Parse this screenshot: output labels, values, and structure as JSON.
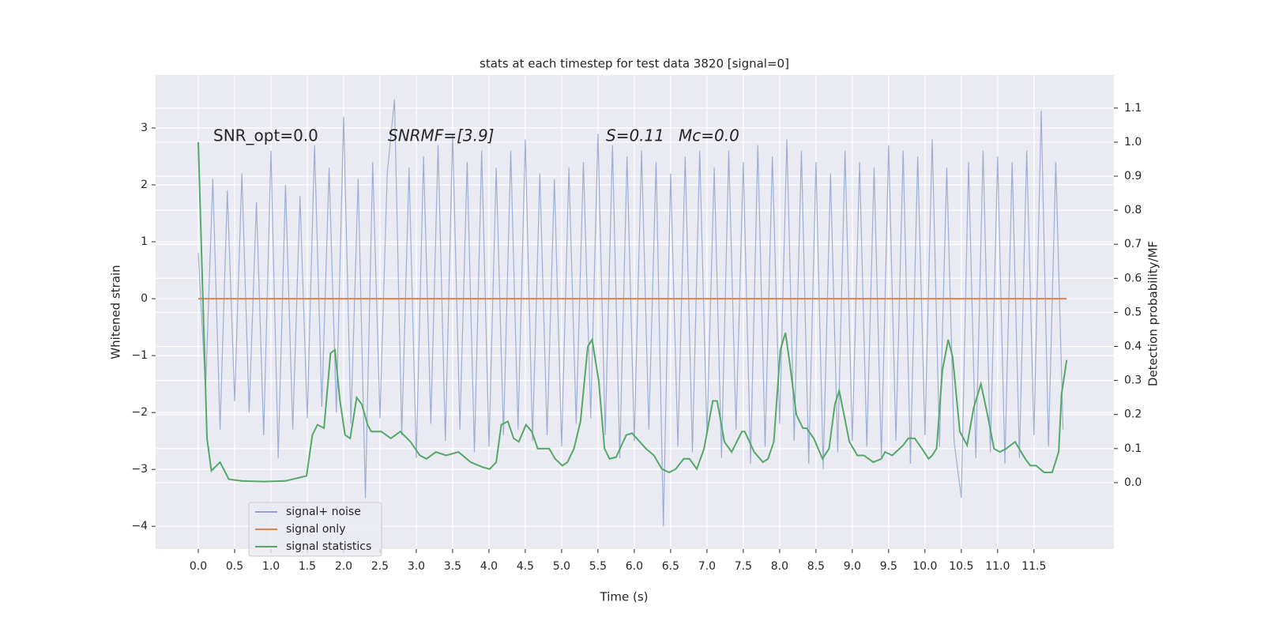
{
  "chart_data": {
    "type": "line",
    "title": "stats at each timestep for test data 3820 [signal=0]",
    "xlabel": "Time (s)",
    "ylabel": "Whitened strain",
    "y2label": "Detection probability/MF",
    "annotations": [
      "SNR_opt=0.0",
      "SNRMF=[3.9]",
      "S=0.11",
      "Mc=0.0"
    ],
    "xlim": [
      -0.587,
      12.6
    ],
    "ylim": [
      -4.4,
      3.93
    ],
    "y2lim": [
      -0.195,
      1.197
    ],
    "xticks": [
      {
        "value": 0,
        "label": "0.0"
      },
      0.5,
      {
        "value": 1,
        "label": "1.0"
      },
      1.5,
      {
        "value": 2,
        "label": "2.0"
      },
      2.5,
      {
        "value": 3,
        "label": "3.0"
      },
      3.5,
      {
        "value": 4,
        "label": "4.0"
      },
      4.5,
      {
        "value": 5,
        "label": "5.0"
      },
      5.5,
      {
        "value": 6,
        "label": "6.0"
      },
      6.5,
      {
        "value": 7,
        "label": "7.0"
      },
      7.5,
      {
        "value": 8,
        "label": "8.0"
      },
      8.5,
      {
        "value": 9,
        "label": "9.0"
      },
      9.5,
      {
        "value": 10,
        "label": "10.0"
      },
      10.5,
      {
        "value": 11,
        "label": "11.0"
      },
      11.5
    ],
    "yticks": [
      {
        "value": -4,
        "label": "−4"
      },
      {
        "value": -3,
        "label": "−3"
      },
      {
        "value": -2,
        "label": "−2"
      },
      {
        "value": -1,
        "label": "−1"
      },
      0,
      1,
      2,
      3
    ],
    "y2ticks": [
      {
        "value": 0,
        "label": "0.0"
      },
      0.1,
      0.2,
      0.3,
      0.4,
      0.5,
      0.6,
      0.7,
      0.8,
      0.9,
      {
        "value": 1,
        "label": "1.0"
      },
      1.1
    ],
    "grid": true,
    "legend": "lower left",
    "series": [
      {
        "name": "signal+ noise",
        "color": "#8fa3cf",
        "x": [
          0,
          0.1,
          0.2,
          0.3,
          0.4,
          0.5,
          0.6,
          0.7,
          0.8,
          0.9,
          1,
          1.1,
          1.2,
          1.3,
          1.4,
          1.5,
          1.6,
          1.7,
          1.8,
          1.9,
          2,
          2.1,
          2.2,
          2.3,
          2.4,
          2.5,
          2.6,
          2.7,
          2.8,
          2.9,
          3,
          3.1,
          3.2,
          3.3,
          3.4,
          3.5,
          3.6,
          3.7,
          3.8,
          3.9,
          4,
          4.1,
          4.2,
          4.3,
          4.4,
          4.5,
          4.6,
          4.7,
          4.8,
          4.9,
          5,
          5.1,
          5.2,
          5.3,
          5.4,
          5.5,
          5.6,
          5.7,
          5.8,
          5.9,
          6,
          6.1,
          6.2,
          6.3,
          6.4,
          6.5,
          6.6,
          6.7,
          6.8,
          6.9,
          7,
          7.1,
          7.2,
          7.3,
          7.4,
          7.5,
          7.6,
          7.7,
          7.8,
          7.9,
          8,
          8.1,
          8.2,
          8.3,
          8.4,
          8.5,
          8.6,
          8.7,
          8.8,
          8.9,
          9,
          9.1,
          9.2,
          9.3,
          9.4,
          9.5,
          9.6,
          9.7,
          9.8,
          9.9,
          10,
          10.1,
          10.2,
          10.3,
          10.4,
          10.5,
          10.6,
          10.7,
          10.8,
          10.9,
          11,
          11.1,
          11.2,
          11.3,
          11.4,
          11.5,
          11.6,
          11.7,
          11.8,
          11.9
        ],
        "values": [
          0.8,
          -1.6,
          2.1,
          -2.3,
          1.9,
          -1.8,
          2.2,
          -2.0,
          1.7,
          -2.4,
          2.6,
          -2.8,
          2.0,
          -2.3,
          1.8,
          -2.1,
          2.7,
          -1.9,
          2.3,
          -2.0,
          3.2,
          -2.2,
          2.1,
          -3.5,
          2.4,
          -2.1,
          2.2,
          3.5,
          -2.4,
          2.3,
          -2.8,
          2.5,
          -2.2,
          2.7,
          -2.5,
          2.9,
          -2.3,
          2.4,
          -2.7,
          2.6,
          -2.6,
          2.3,
          -2.4,
          2.6,
          -2.3,
          2.8,
          -2.5,
          2.2,
          -2.4,
          2.1,
          -2.6,
          2.3,
          -2.2,
          2.4,
          -2.1,
          2.9,
          -2.4,
          2.7,
          -2.8,
          2.5,
          -2.5,
          2.6,
          -2.3,
          2.4,
          -4.0,
          2.2,
          -2.6,
          2.5,
          -2.7,
          2.6,
          -2.4,
          2.3,
          -2.8,
          2.6,
          -2.3,
          2.4,
          -2.9,
          2.7,
          -2.6,
          2.5,
          -2.2,
          2.8,
          -2.5,
          2.6,
          -2.9,
          2.4,
          -3.0,
          2.2,
          -2.7,
          2.6,
          -2.5,
          2.4,
          -2.6,
          2.3,
          -2.8,
          2.7,
          -2.5,
          2.6,
          -2.9,
          2.5,
          -2.4,
          2.8,
          -2.6,
          2.3,
          -2.5,
          -3.5,
          2.4,
          -2.8,
          2.6,
          -2.7,
          2.5,
          -2.9,
          2.4,
          -2.8,
          2.6,
          -2.4,
          3.3,
          -2.6,
          2.4,
          -2.3
        ]
      },
      {
        "name": "signal only",
        "color": "#dd8452",
        "x": [
          0,
          11.95
        ],
        "values": [
          0,
          0
        ]
      },
      {
        "name": "signal statistics",
        "color": "#55a868",
        "axis": "y2",
        "x": [
          0,
          0.12,
          0.18,
          0.3,
          0.42,
          0.6,
          0.9,
          1.2,
          1.49,
          1.57,
          1.64,
          1.73,
          1.82,
          1.88,
          1.95,
          2.02,
          2.09,
          2.18,
          2.25,
          2.33,
          2.38,
          2.52,
          2.65,
          2.78,
          2.92,
          3.05,
          3.14,
          3.27,
          3.41,
          3.58,
          3.75,
          3.92,
          4.01,
          4.1,
          4.17,
          4.26,
          4.34,
          4.41,
          4.51,
          4.59,
          4.67,
          4.83,
          4.91,
          5.01,
          5.08,
          5.17,
          5.26,
          5.36,
          5.42,
          5.51,
          5.59,
          5.66,
          5.75,
          5.89,
          5.97,
          6.16,
          6.27,
          6.38,
          6.48,
          6.57,
          6.68,
          6.76,
          6.86,
          6.96,
          7.08,
          7.14,
          7.24,
          7.34,
          7.48,
          7.52,
          7.65,
          7.77,
          7.84,
          7.92,
          8.01,
          8.08,
          8.14,
          8.23,
          8.32,
          8.37,
          8.47,
          8.59,
          8.68,
          8.76,
          8.82,
          8.96,
          9.07,
          9.16,
          9.29,
          9.4,
          9.45,
          9.55,
          9.7,
          9.77,
          9.86,
          9.99,
          10.05,
          10.1,
          10.16,
          10.24,
          10.32,
          10.38,
          10.48,
          10.58,
          10.67,
          10.77,
          10.86,
          10.95,
          11.03,
          11.12,
          11.24,
          11.38,
          11.45,
          11.53,
          11.64,
          11.75,
          11.84,
          11.88,
          11.95
        ],
        "values": [
          1.0,
          0.13,
          0.035,
          0.06,
          0.01,
          0.005,
          0.003,
          0.005,
          0.02,
          0.14,
          0.17,
          0.16,
          0.38,
          0.39,
          0.24,
          0.14,
          0.13,
          0.25,
          0.23,
          0.17,
          0.15,
          0.15,
          0.13,
          0.15,
          0.12,
          0.08,
          0.07,
          0.09,
          0.08,
          0.09,
          0.06,
          0.045,
          0.04,
          0.06,
          0.17,
          0.18,
          0.13,
          0.12,
          0.17,
          0.15,
          0.1,
          0.1,
          0.07,
          0.05,
          0.06,
          0.1,
          0.18,
          0.4,
          0.42,
          0.3,
          0.1,
          0.07,
          0.075,
          0.14,
          0.145,
          0.1,
          0.08,
          0.04,
          0.03,
          0.04,
          0.07,
          0.07,
          0.04,
          0.1,
          0.24,
          0.24,
          0.12,
          0.09,
          0.15,
          0.15,
          0.09,
          0.06,
          0.07,
          0.12,
          0.39,
          0.44,
          0.35,
          0.2,
          0.16,
          0.16,
          0.13,
          0.07,
          0.1,
          0.23,
          0.27,
          0.12,
          0.08,
          0.08,
          0.06,
          0.07,
          0.09,
          0.08,
          0.11,
          0.13,
          0.13,
          0.09,
          0.07,
          0.08,
          0.1,
          0.33,
          0.42,
          0.37,
          0.15,
          0.11,
          0.22,
          0.29,
          0.2,
          0.1,
          0.09,
          0.1,
          0.12,
          0.07,
          0.05,
          0.05,
          0.03,
          0.03,
          0.09,
          0.26,
          0.36
        ]
      }
    ]
  }
}
